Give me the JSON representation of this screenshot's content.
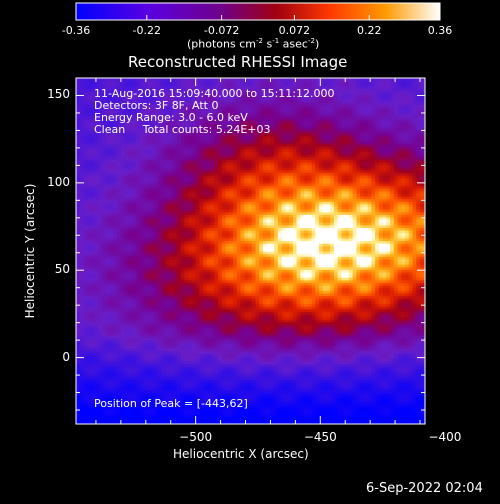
{
  "colorbar": {
    "ticks": [
      "-0.36",
      "-0.22",
      "-0.072",
      "0.072",
      "0.22",
      "0.36"
    ],
    "units_parts": [
      "(photons cm",
      "-2",
      " s",
      "-1",
      " asec",
      "-2",
      ")"
    ]
  },
  "chart_data": {
    "type": "heatmap",
    "title": "Reconstructed RHESSI Image",
    "xlabel": "Heliocentric X (arcsec)",
    "ylabel": "Heliocentric Y (arcsec)",
    "xlim": [
      -548,
      -408
    ],
    "ylim": [
      -38,
      160
    ],
    "xticks": [
      -500,
      -450,
      -400
    ],
    "yticks": [
      0,
      50,
      100,
      150
    ],
    "xtick_labels": [
      "−500",
      "−450",
      "−400"
    ],
    "ytick_labels": [
      "0",
      "50",
      "100",
      "150"
    ],
    "color_range": [
      -0.36,
      0.36
    ],
    "colormap": [
      "#0000ff",
      "#6a1fd0",
      "#8a0080",
      "#b00000",
      "#ff3000",
      "#ff8c00",
      "#ffd040",
      "#ffffff"
    ],
    "peak": {
      "x": -443,
      "y": 62
    },
    "annotations": [
      "11-Aug-2016 15:09:40.000 to 15:11:12.000",
      "Detectors: 3F 8F, Att 0",
      "Energy Range: 3.0 - 6.0 keV",
      "Clean     Total counts: 5.24E+03",
      "Position of Peak = [-443,62]"
    ]
  },
  "footer": {
    "timestamp": "6-Sep-2022 02:04"
  }
}
